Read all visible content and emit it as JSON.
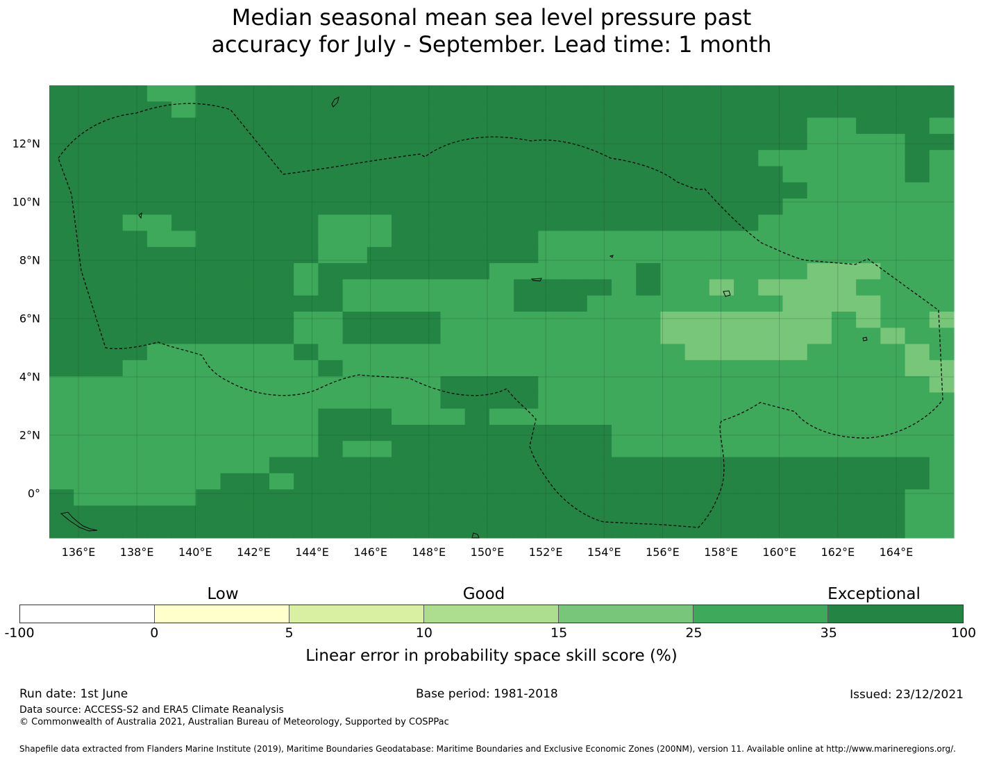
{
  "title": {
    "line1": "Median seasonal mean sea level pressure past",
    "line2": "accuracy for July - September. Lead time: 1 month"
  },
  "map": {
    "longitude_ticks": [
      "136°E",
      "138°E",
      "140°E",
      "142°E",
      "144°E",
      "146°E",
      "148°E",
      "150°E",
      "152°E",
      "154°E",
      "156°E",
      "158°E",
      "160°E",
      "162°E",
      "164°E"
    ],
    "latitude_ticks": [
      "12°N",
      "10°N",
      "8°N",
      "6°N",
      "4°N",
      "2°N",
      "0°"
    ],
    "grid_lines": true,
    "eez_boundary_style": "dashed"
  },
  "legend": {
    "categories": [
      "Low",
      "Good",
      "Exceptional"
    ],
    "bins": [
      {
        "from": -100,
        "to": 0,
        "color": "#ffffff"
      },
      {
        "from": 0,
        "to": 5,
        "color": "#ffffcc"
      },
      {
        "from": 5,
        "to": 10,
        "color": "#d9f0a3"
      },
      {
        "from": 10,
        "to": 15,
        "color": "#addd8e"
      },
      {
        "from": 15,
        "to": 25,
        "color": "#78c679"
      },
      {
        "from": 25,
        "to": 35,
        "color": "#3fa95b"
      },
      {
        "from": 35,
        "to": 100,
        "color": "#238443"
      }
    ],
    "tick_labels": [
      "-100",
      "0",
      "5",
      "10",
      "15",
      "25",
      "35",
      "100"
    ],
    "label": "Linear error in probability space skill score (%)"
  },
  "footer": {
    "run_date": "Run date: 1st June",
    "base_period": "Base period: 1981-2018",
    "issued": "Issued: 23/12/2021",
    "data_source": "Data source: ACCESS-S2 and ERA5 Climate Reanalysis",
    "copyright": "© Commonwealth of Australia 2021, Australian Bureau of Meteorology, Supported by COSPPac",
    "shapefile": "Shapefile data extracted from Flanders Marine Institute (2019), Maritime Boundaries Geodatabase: Maritime Boundaries and Exclusive Economic Zones (200NM), version 11. Available online at http://www.marineregions.org/."
  }
}
